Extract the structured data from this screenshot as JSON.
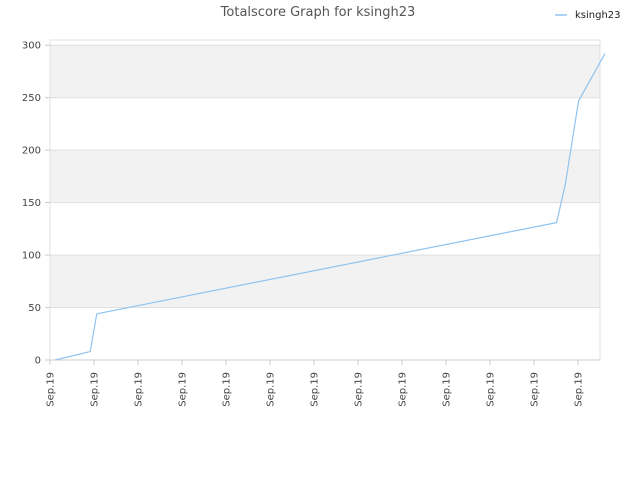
{
  "chart_data": {
    "type": "line",
    "title": "Totalscore Graph for ksingh23",
    "xlabel": "",
    "ylabel": "",
    "ylim": [
      0,
      305
    ],
    "yticks": [
      0,
      50,
      100,
      150,
      200,
      250,
      300
    ],
    "xtick_labels": [
      "Sep.19",
      "Sep.19",
      "Sep.19",
      "Sep.19",
      "Sep.19",
      "Sep.19",
      "Sep.19",
      "Sep.19",
      "Sep.19",
      "Sep.19",
      "Sep.19",
      "Sep.19",
      "Sep.19"
    ],
    "grid": true,
    "legend_position": "top-right",
    "series": [
      {
        "name": "ksingh23",
        "color": "#90c3f0",
        "x": [
          0,
          0.8,
          0.95,
          11.4,
          11.6,
          11.9,
          12.5
        ],
        "values": [
          0,
          8,
          44,
          131,
          168,
          247,
          292
        ]
      }
    ]
  },
  "colors": {
    "band": "#f2f2f2",
    "gridline": "#e0e0e0",
    "axis": "#cccccc"
  }
}
